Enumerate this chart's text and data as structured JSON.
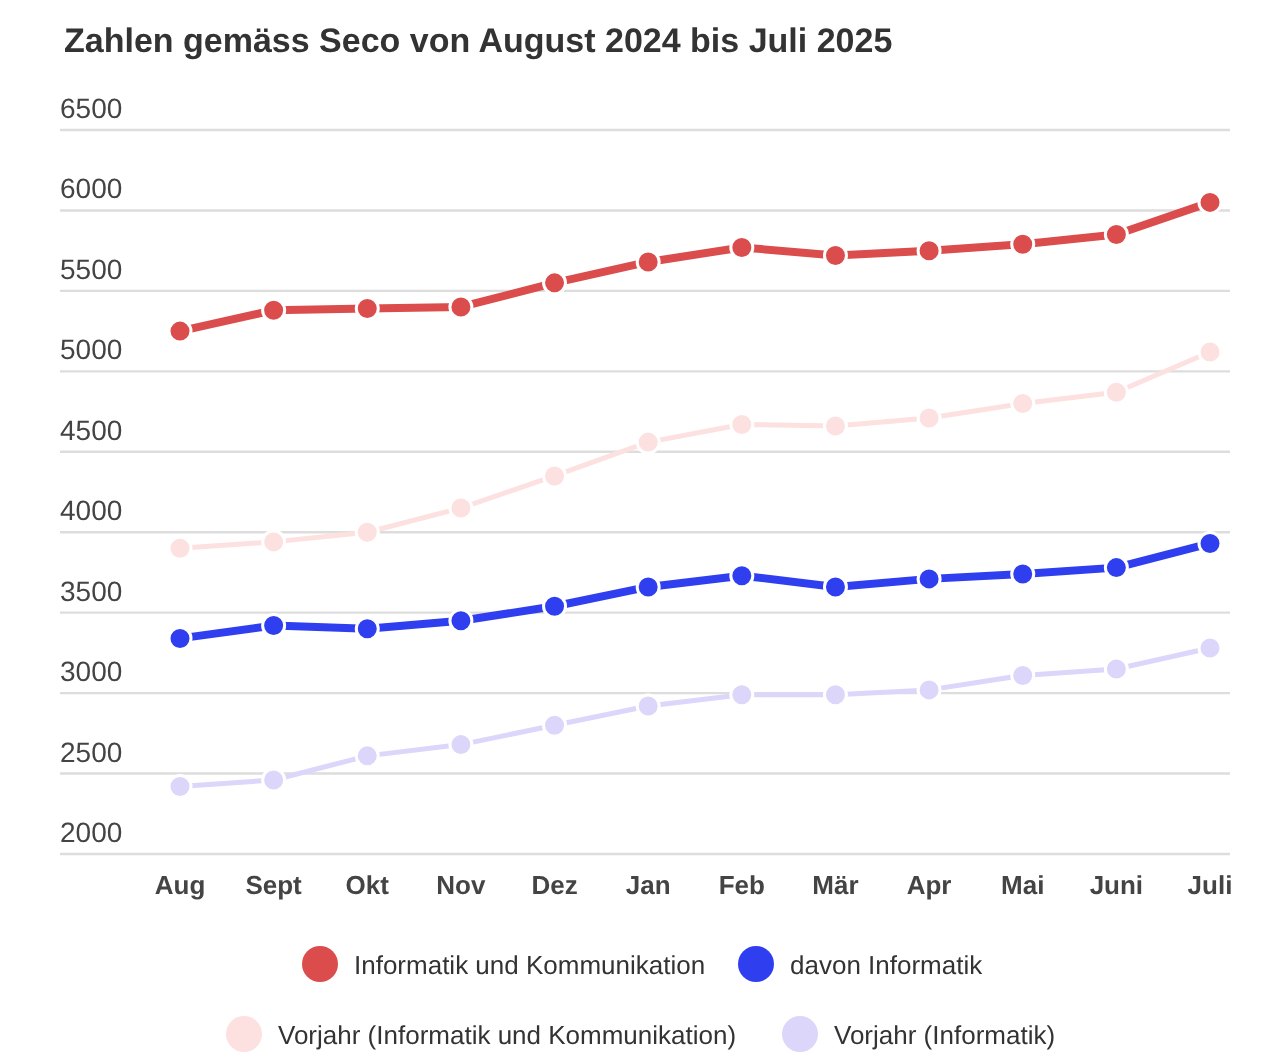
{
  "chart_data": {
    "type": "line",
    "title": "Zahlen gemäss Seco von August 2024 bis Juli 2025",
    "categories": [
      "Aug",
      "Sept",
      "Okt",
      "Nov",
      "Dez",
      "Jan",
      "Feb",
      "Mär",
      "Apr",
      "Mai",
      "Juni",
      "Juli"
    ],
    "series": [
      {
        "name": "Informatik und Kommunikation",
        "color": "#db4c4c",
        "values": [
          5250,
          5380,
          5390,
          5400,
          5550,
          5680,
          5770,
          5720,
          5750,
          5790,
          5850,
          6050
        ]
      },
      {
        "name": "davon Informatik",
        "color": "#2f3ff0",
        "values": [
          3340,
          3420,
          3400,
          3450,
          3540,
          3660,
          3730,
          3660,
          3710,
          3740,
          3780,
          3930
        ]
      },
      {
        "name": "Vorjahr (Informatik und Kommunikation)",
        "color": "#fde0e0",
        "values": [
          3900,
          3940,
          4000,
          4150,
          4350,
          4560,
          4670,
          4660,
          4710,
          4800,
          4870,
          5120
        ]
      },
      {
        "name": "Vorjahr (Informatik)",
        "color": "#dcd6fb",
        "values": [
          2420,
          2460,
          2610,
          2680,
          2800,
          2920,
          2990,
          2990,
          3020,
          3110,
          3150,
          3280
        ]
      }
    ],
    "ylim": [
      2000,
      6500
    ],
    "yticks": [
      2000,
      2500,
      3000,
      3500,
      4000,
      4500,
      5000,
      5500,
      6000,
      6500
    ],
    "grid": "y",
    "legend": "bottom",
    "marker": "circle",
    "line_style": "solid"
  }
}
